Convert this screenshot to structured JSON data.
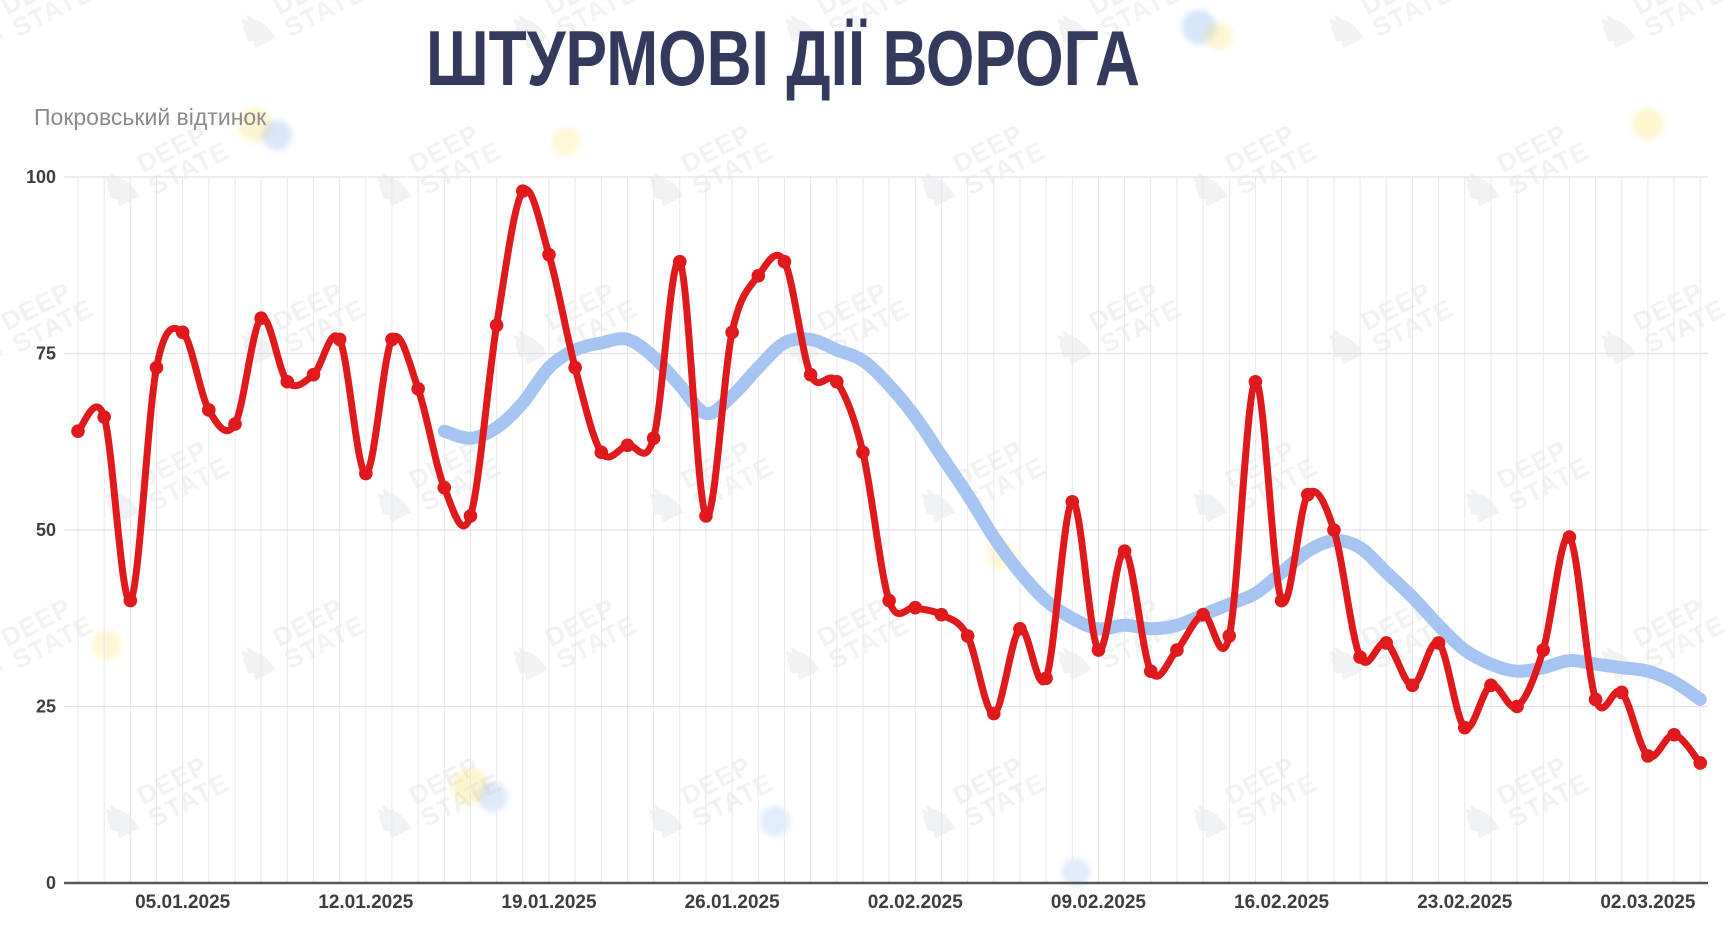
{
  "chart_data": {
    "type": "line",
    "title": "ШТУРМОВІ ДІЇ ВОРОГА",
    "subtitle": "Покровський відтинок",
    "ylim": [
      0,
      100
    ],
    "y_ticks": [
      0,
      25,
      50,
      75,
      100
    ],
    "grid": "daily vertical lines, horizontal lines every 25",
    "legend_position": "none",
    "x_tick_labels": [
      "05.01.2025",
      "12.01.2025",
      "19.01.2025",
      "26.01.2025",
      "02.02.2025",
      "09.02.2025",
      "16.02.2025",
      "23.02.2025",
      "02.03.2025"
    ],
    "x_tick_day_indices": [
      4,
      11,
      18,
      25,
      32,
      39,
      46,
      53,
      60
    ],
    "num_days": 63,
    "series": [
      {
        "name": "enemy-assaults-daily",
        "color": "#e0191c",
        "point_markers": true,
        "start_index": 0,
        "values": [
          64,
          66,
          40,
          73,
          78,
          67,
          65,
          80,
          71,
          72,
          77,
          58,
          77,
          70,
          56,
          52,
          79,
          98,
          89,
          73,
          61,
          62,
          63,
          88,
          52,
          78,
          86,
          88,
          72,
          71,
          61,
          40,
          39,
          38,
          35,
          24,
          36,
          29,
          54,
          33,
          47,
          30,
          33,
          38,
          35,
          71,
          40,
          55,
          50,
          32,
          34,
          28,
          34,
          22,
          28,
          25,
          33,
          49,
          26,
          27,
          18,
          21,
          17
        ]
      },
      {
        "name": "smoothed-trend",
        "color": "#a6c4f1",
        "point_markers": false,
        "start_index": 14,
        "values": [
          64,
          63,
          64.5,
          68,
          73,
          75.5,
          76.5,
          77,
          74.5,
          70.5,
          66.5,
          69,
          73,
          76.5,
          77,
          75.5,
          74,
          70.5,
          66,
          60.5,
          55,
          49,
          44,
          40,
          37.5,
          36,
          36.5,
          36,
          36.5,
          38,
          39.5,
          41,
          44,
          47,
          48.5,
          47.5,
          44,
          40.5,
          36.5,
          33,
          31,
          30,
          30.5,
          31.5,
          31,
          30.5,
          30,
          28.5,
          26
        ]
      }
    ],
    "axis_color": "#58585c",
    "gridline_color": "#e8e8ec"
  },
  "watermark": {
    "line1": "DEEP",
    "line2": "STATE",
    "knight_glyph": "♞"
  }
}
